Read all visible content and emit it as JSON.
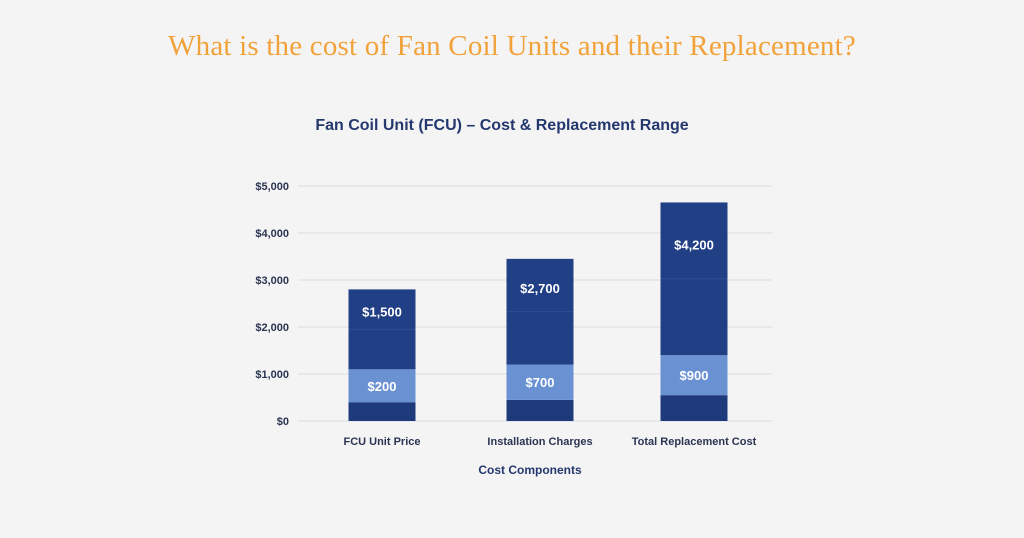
{
  "headline": "What is the cost of Fan Coil Units and their Replacement?",
  "colors": {
    "headline": "#f2a23a",
    "title": "#25386e",
    "dark_bar": "#203f85",
    "light_bar": "#6a92d3",
    "base_bar": "#1e3a7a",
    "background": "#f4f4f5"
  },
  "chart_data": {
    "type": "bar",
    "stacked": true,
    "title": "Fan Coil Unit (FCU) – Cost & Replacement Range",
    "xlabel": "Cost Components",
    "ylabel": "",
    "ylim": [
      0,
      5000
    ],
    "yticks": [
      0,
      1000,
      2000,
      3000,
      4000,
      5000
    ],
    "ytick_labels": [
      "$0",
      "$1,000",
      "$2,000",
      "$3,000",
      "$4,000",
      "$5,000"
    ],
    "categories": [
      "FCU Unit Price",
      "Installation Charges",
      "Total Replacement Cost"
    ],
    "grid": true,
    "legend": "none",
    "series": [
      {
        "values": [
          400,
          450,
          550
        ]
      },
      {
        "values": [
          700,
          750,
          850
        ]
      },
      {
        "values": [
          1700,
          2250,
          3250
        ]
      }
    ],
    "data_labels": {
      "lower": [
        "$200",
        "$700",
        "$900"
      ],
      "upper": [
        "$1,500",
        "$2,700",
        "$4,200"
      ]
    }
  }
}
